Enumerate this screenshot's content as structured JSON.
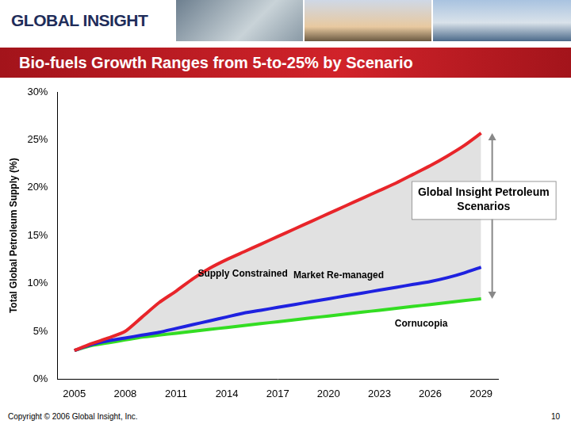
{
  "header": {
    "logo": "GLOBAL INSIGHT"
  },
  "chart_data": {
    "type": "line",
    "title": "Bio-fuels Growth Ranges from 5-to-25% by Scenario",
    "y_label": "Total Global Petroleum Supply (%)",
    "x": [
      2005,
      2006,
      2007,
      2008,
      2009,
      2010,
      2011,
      2012,
      2013,
      2014,
      2015,
      2016,
      2017,
      2018,
      2019,
      2020,
      2021,
      2022,
      2023,
      2024,
      2025,
      2026,
      2027,
      2028,
      2029
    ],
    "series": [
      {
        "name": "Supply Constrained",
        "color": "#e8252a",
        "values": [
          3.0,
          3.7,
          4.3,
          5.0,
          6.5,
          8.0,
          9.2,
          10.5,
          11.6,
          12.5,
          13.3,
          14.1,
          14.9,
          15.7,
          16.5,
          17.3,
          18.1,
          18.9,
          19.7,
          20.5,
          21.4,
          22.3,
          23.3,
          24.4,
          25.7
        ]
      },
      {
        "name": "Market Re-managed",
        "color": "#1f22e0",
        "values": [
          3.0,
          3.6,
          4.0,
          4.3,
          4.6,
          4.9,
          5.3,
          5.7,
          6.1,
          6.5,
          6.9,
          7.2,
          7.5,
          7.8,
          8.1,
          8.4,
          8.7,
          9.0,
          9.3,
          9.6,
          9.9,
          10.2,
          10.6,
          11.1,
          11.7
        ]
      },
      {
        "name": "Cornucopia",
        "color": "#33dd22",
        "values": [
          3.0,
          3.5,
          3.8,
          4.1,
          4.4,
          4.6,
          4.8,
          5.0,
          5.2,
          5.4,
          5.6,
          5.8,
          6.0,
          6.2,
          6.4,
          6.6,
          6.8,
          7.0,
          7.2,
          7.4,
          7.6,
          7.8,
          8.0,
          8.2,
          8.4
        ]
      }
    ],
    "xlim": [
      2004,
      2030
    ],
    "xticks": [
      2005,
      2008,
      2011,
      2014,
      2017,
      2020,
      2023,
      2026,
      2029
    ],
    "ylim": [
      0,
      30
    ],
    "yticks": [
      {
        "value": 0,
        "label": "0%"
      },
      {
        "value": 5,
        "label": "5%"
      },
      {
        "value": 10,
        "label": "10%"
      },
      {
        "value": 15,
        "label": "15%"
      },
      {
        "value": 20,
        "label": "20%"
      },
      {
        "value": 25,
        "label": "25%"
      },
      {
        "value": 30,
        "label": "30%"
      }
    ],
    "grid": false,
    "annotations": [
      "Global Insight Petroleum Scenarios"
    ]
  },
  "footer": {
    "copyright": "Copyright © 2006 Global Insight, Inc.",
    "page": 10
  }
}
